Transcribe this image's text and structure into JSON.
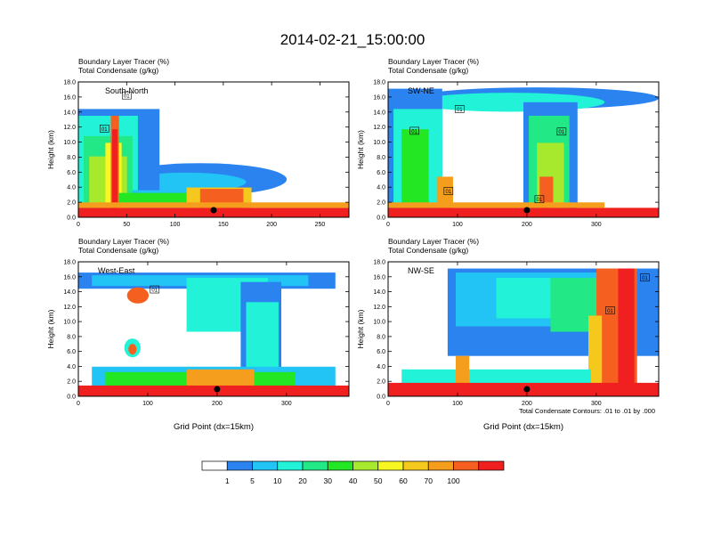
{
  "title": "2014-02-21_15:00:00",
  "footnote": "Total Condensate Contours: .01 to .01 by .000",
  "colorbar": {
    "colors": [
      "#ffffff",
      "#2b83f0",
      "#22c3f5",
      "#22f3d8",
      "#22e885",
      "#22e722",
      "#a6e92d",
      "#f7f722",
      "#f5c81e",
      "#f59e1d",
      "#f56020",
      "#f02020"
    ],
    "labels": [
      "1",
      "5",
      "10",
      "20",
      "30",
      "40",
      "50",
      "60",
      "70",
      "100"
    ]
  },
  "chart_data": [
    {
      "type": "heatmap",
      "section": "South-North",
      "title_line1": "Boundary Layer Tracer   (%)",
      "title_line2": "Total Condensate   (g/kg)",
      "ylabel": "Height (km)",
      "xlabel": "",
      "xlim": [
        0,
        280
      ],
      "ylim": [
        0,
        18
      ],
      "xticks": [
        "0",
        "50",
        "100",
        "150",
        "200",
        "250"
      ],
      "xtick_values": [
        0,
        50,
        100,
        150,
        200,
        250
      ],
      "yticks": [
        "0.0",
        "2.0",
        "4.0",
        "6.0",
        "8.0",
        "10.0",
        "12.0",
        "14.0",
        "16.0",
        "18.0"
      ],
      "marker_x": 140,
      "contour_labels": [
        {
          "x": 50,
          "y": 16.2,
          "text": "01"
        },
        {
          "x": 27,
          "y": 11.8,
          "text": "01"
        }
      ]
    },
    {
      "type": "heatmap",
      "section": "SW-NE",
      "title_line1": "Boundary Layer Tracer   (%)",
      "title_line2": "Total Condensate   (g/kg)",
      "ylabel": "Height (km)",
      "xlabel": "",
      "xlim": [
        0,
        390
      ],
      "ylim": [
        0,
        18
      ],
      "xticks": [
        "0",
        "100",
        "200",
        "300"
      ],
      "xtick_values": [
        0,
        100,
        200,
        300
      ],
      "yticks": [
        "0.0",
        "2.0",
        "4.0",
        "6.0",
        "8.0",
        "10.0",
        "12.0",
        "14.0",
        "16.0",
        "18.0"
      ],
      "marker_x": 200,
      "contour_labels": [
        {
          "x": 103,
          "y": 14.4,
          "text": "01"
        },
        {
          "x": 38,
          "y": 11.5,
          "text": "01"
        },
        {
          "x": 250,
          "y": 11.4,
          "text": "01"
        },
        {
          "x": 87,
          "y": 3.5,
          "text": "01"
        },
        {
          "x": 218,
          "y": 2.4,
          "text": "01"
        }
      ]
    },
    {
      "type": "heatmap",
      "section": "West-East",
      "title_line1": "Boundary Layer Tracer   (%)",
      "title_line2": "Total Condensate   (g/kg)",
      "ylabel": "Height (km)",
      "xlabel": "Grid Point (dx=15km)",
      "xlim": [
        0,
        390
      ],
      "ylim": [
        0,
        18
      ],
      "xticks": [
        "0",
        "100",
        "200",
        "300"
      ],
      "xtick_values": [
        0,
        100,
        200,
        300
      ],
      "yticks": [
        "0.0",
        "2.0",
        "4.0",
        "6.0",
        "8.0",
        "10.0",
        "12.0",
        "14.0",
        "16.0",
        "18.0"
      ],
      "marker_x": 200,
      "contour_labels": [
        {
          "x": 110,
          "y": 14.3,
          "text": "01"
        }
      ]
    },
    {
      "type": "heatmap",
      "section": "NW-SE",
      "title_line1": "Boundary Layer Tracer   (%)",
      "title_line2": "Total Condensate   (g/kg)",
      "ylabel": "Height (km)",
      "xlabel": "Grid Point (dx=15km)",
      "xlim": [
        0,
        390
      ],
      "ylim": [
        0,
        18
      ],
      "xticks": [
        "0",
        "100",
        "200",
        "300"
      ],
      "xtick_values": [
        0,
        100,
        200,
        300
      ],
      "yticks": [
        "0.0",
        "2.0",
        "4.0",
        "6.0",
        "8.0",
        "10.0",
        "12.0",
        "14.0",
        "16.0",
        "18.0"
      ],
      "marker_x": 200,
      "contour_labels": [
        {
          "x": 370,
          "y": 15.9,
          "text": "01"
        },
        {
          "x": 320,
          "y": 11.5,
          "text": "01"
        }
      ]
    }
  ]
}
